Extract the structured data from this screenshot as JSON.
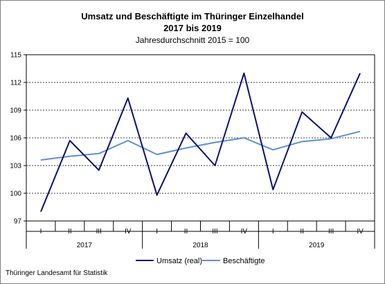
{
  "chart_data": {
    "type": "line",
    "title": "Umsatz und Beschäftigte im Thüringer Einzelhandel",
    "subtitle": "2017 bis 2019",
    "note": "Jahresdurchschnitt 2015 = 100",
    "categories": [
      "I",
      "II",
      "III",
      "IV",
      "I",
      "II",
      "III",
      "IV",
      "I",
      "II",
      "III",
      "IV"
    ],
    "year_groups": [
      "2017",
      "2018",
      "2019"
    ],
    "ylim": [
      97,
      115
    ],
    "yticks": [
      97,
      100,
      103,
      106,
      109,
      112,
      115
    ],
    "grid": true,
    "legend_position": "bottom",
    "series": [
      {
        "name": "Umsatz (real)",
        "color": "#0b0f6e",
        "values": [
          98.0,
          105.7,
          102.5,
          110.3,
          99.8,
          106.5,
          103.0,
          113.0,
          100.4,
          108.8,
          106.0,
          113.0
        ]
      },
      {
        "name": "Beschäftigte",
        "color": "#5b8fd4",
        "values": [
          103.6,
          104.0,
          104.3,
          105.7,
          104.2,
          104.9,
          105.5,
          106.0,
          104.7,
          105.6,
          105.9,
          106.7
        ]
      }
    ]
  },
  "source": "Thüringer Landesamt für  Statistik"
}
